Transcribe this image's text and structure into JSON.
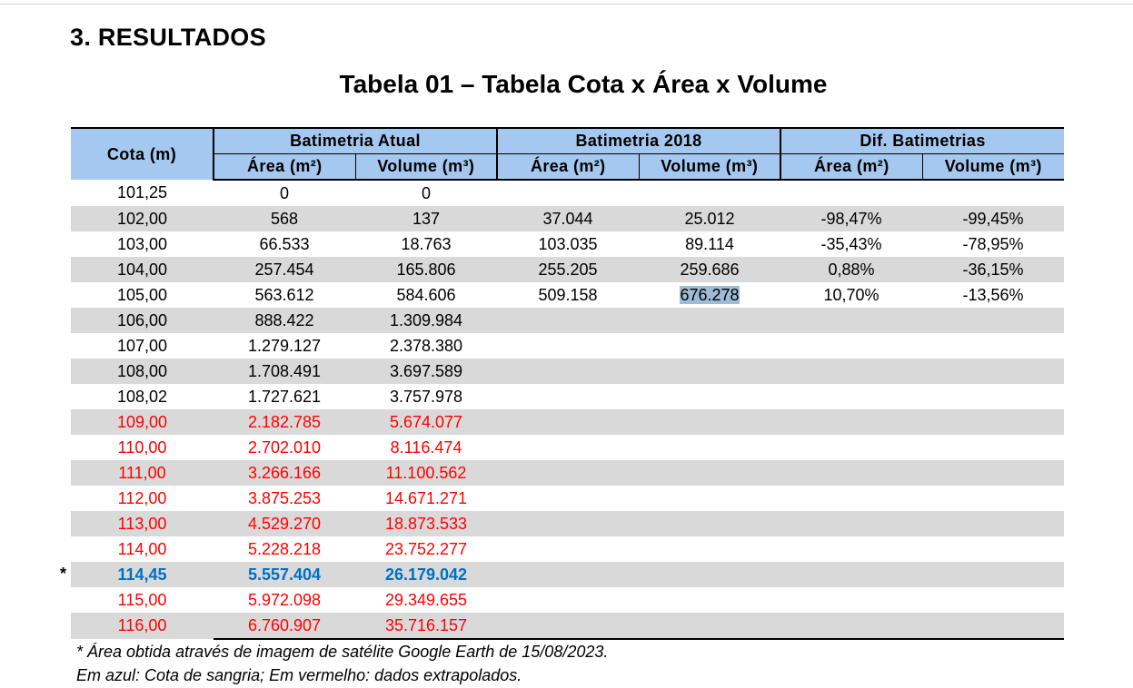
{
  "section_heading": "3. RESULTADOS",
  "table_title": "Tabela 01 – Tabela Cota x Área x Volume",
  "table": {
    "header": {
      "cota": "Cota (m)",
      "groups": [
        "Batimetria Atual",
        "Batimetria 2018",
        "Dif. Batimetrias"
      ],
      "subcols": [
        "Área (m²)",
        "Volume (m³)",
        "Área (m²)",
        "Volume (m³)",
        "Área (m²)",
        "Volume (m³)"
      ]
    },
    "rows": [
      [
        "101,25",
        "0",
        "0",
        "",
        "",
        "",
        ""
      ],
      [
        "102,00",
        "568",
        "137",
        "37.044",
        "25.012",
        "-98,47%",
        "-99,45%"
      ],
      [
        "103,00",
        "66.533",
        "18.763",
        "103.035",
        "89.114",
        "-35,43%",
        "-78,95%"
      ],
      [
        "104,00",
        "257.454",
        "165.806",
        "255.205",
        "259.686",
        "0,88%",
        "-36,15%"
      ],
      [
        "105,00",
        "563.612",
        "584.606",
        "509.158",
        "676.278",
        "10,70%",
        "-13,56%"
      ],
      [
        "106,00",
        "888.422",
        "1.309.984",
        "",
        "",
        "",
        ""
      ],
      [
        "107,00",
        "1.279.127",
        "2.378.380",
        "",
        "",
        "",
        ""
      ],
      [
        "108,00",
        "1.708.491",
        "3.697.589",
        "",
        "",
        "",
        ""
      ],
      [
        "108,02",
        "1.727.621",
        "3.757.978",
        "",
        "",
        "",
        ""
      ],
      [
        "109,00",
        "2.182.785",
        "5.674.077",
        "",
        "",
        "",
        ""
      ],
      [
        "110,00",
        "2.702.010",
        "8.116.474",
        "",
        "",
        "",
        ""
      ],
      [
        "111,00",
        "3.266.166",
        "11.100.562",
        "",
        "",
        "",
        ""
      ],
      [
        "112,00",
        "3.875.253",
        "14.671.271",
        "",
        "",
        "",
        ""
      ],
      [
        "113,00",
        "4.529.270",
        "18.873.533",
        "",
        "",
        "",
        ""
      ],
      [
        "114,00",
        "5.228.218",
        "23.752.277",
        "",
        "",
        "",
        ""
      ],
      [
        "114,45",
        "5.557.404",
        "26.179.042",
        "",
        "",
        "",
        ""
      ],
      [
        "115,00",
        "5.972.098",
        "29.349.655",
        "",
        "",
        "",
        ""
      ],
      [
        "116,00",
        "6.760.907",
        "35.716.157",
        "",
        "",
        "",
        ""
      ]
    ],
    "row_marker": "*"
  },
  "notes": [
    "* Área obtida através de imagem de satélite Google Earth de 15/08/2023.",
    "Em azul: Cota de sangria; Em vermelho: dados extrapolados."
  ],
  "colors": {
    "header_fill": "#a5c8f0",
    "row_shade": "#d9d9d9",
    "extrapolated": "#ff0000",
    "spillway": "#0070c0",
    "selection": "#9fbcd6"
  }
}
